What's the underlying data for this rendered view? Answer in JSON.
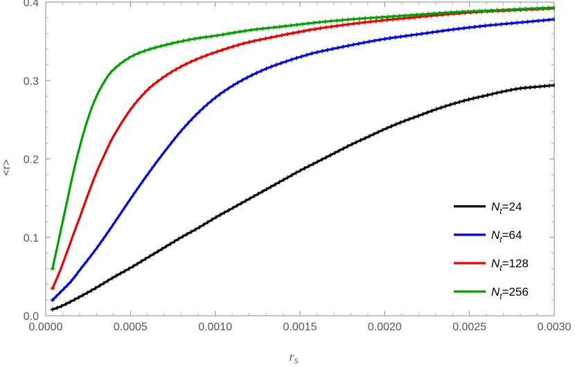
{
  "chart_data": {
    "type": "line",
    "title": "",
    "xlabel": "r_S",
    "xlabel_main": "r",
    "xlabel_sub": "S",
    "ylabel": "<r>",
    "xlim": [
      0.0,
      0.003
    ],
    "ylim": [
      0.0,
      0.4
    ],
    "x_ticks": [
      0.0,
      0.0005,
      0.001,
      0.0015,
      0.002,
      0.0025,
      0.003
    ],
    "x_tick_labels": [
      "0.0000",
      "0.0005",
      "0.0010",
      "0.0015",
      "0.0020",
      "0.0025",
      "0.0030"
    ],
    "y_ticks": [
      0.0,
      0.1,
      0.2,
      0.3,
      0.4
    ],
    "y_tick_labels": [
      "0.0",
      "0.1",
      "0.2",
      "0.3",
      "0.4"
    ],
    "grid": false,
    "legend_position": "bottom-right",
    "series": [
      {
        "name": "N_t=24",
        "legend_symbol": "N",
        "legend_sub": "t",
        "legend_value": "=24",
        "color": "#000000",
        "x": [
          4e-05,
          0.0001,
          0.0002,
          0.0003,
          0.0004,
          0.0005,
          0.0006,
          0.0007,
          0.0008,
          0.0009,
          0.001,
          0.0011,
          0.0012,
          0.0013,
          0.0014,
          0.0015,
          0.0016,
          0.0017,
          0.0018,
          0.0019,
          0.002,
          0.0021,
          0.0022,
          0.0023,
          0.0024,
          0.0025,
          0.0026,
          0.0027,
          0.0028,
          0.0029,
          0.003
        ],
        "values": [
          0.008,
          0.013,
          0.024,
          0.036,
          0.049,
          0.061,
          0.074,
          0.087,
          0.1,
          0.112,
          0.125,
          0.137,
          0.149,
          0.161,
          0.173,
          0.185,
          0.196,
          0.207,
          0.218,
          0.228,
          0.238,
          0.247,
          0.255,
          0.263,
          0.27,
          0.276,
          0.281,
          0.286,
          0.29,
          0.292,
          0.294
        ]
      },
      {
        "name": "N_t=64",
        "legend_symbol": "N",
        "legend_sub": "t",
        "legend_value": "=64",
        "color": "#0000ee",
        "x": [
          4e-05,
          0.0001,
          0.00015,
          0.0002,
          0.0003,
          0.0004,
          0.0005,
          0.0006,
          0.0007,
          0.0008,
          0.0009,
          0.001,
          0.0011,
          0.0012,
          0.0013,
          0.0014,
          0.0015,
          0.0016,
          0.0018,
          0.002,
          0.0022,
          0.0024,
          0.0026,
          0.0028,
          0.003
        ],
        "values": [
          0.02,
          0.033,
          0.044,
          0.058,
          0.086,
          0.117,
          0.149,
          0.18,
          0.209,
          0.236,
          0.259,
          0.278,
          0.293,
          0.305,
          0.315,
          0.323,
          0.33,
          0.336,
          0.345,
          0.353,
          0.359,
          0.365,
          0.37,
          0.374,
          0.378
        ]
      },
      {
        "name": "N_t=128",
        "legend_symbol": "N",
        "legend_sub": "t",
        "legend_value": "=128",
        "color": "#ee0000",
        "x": [
          4e-05,
          8e-05,
          0.00012,
          0.00016,
          0.0002,
          0.00025,
          0.0003,
          0.00035,
          0.0004,
          0.0005,
          0.0006,
          0.0007,
          0.0008,
          0.0009,
          0.001,
          0.0011,
          0.0012,
          0.0014,
          0.0016,
          0.0018,
          0.002,
          0.0022,
          0.0024,
          0.0026,
          0.0028,
          0.003
        ],
        "values": [
          0.035,
          0.055,
          0.078,
          0.102,
          0.125,
          0.155,
          0.183,
          0.207,
          0.229,
          0.263,
          0.288,
          0.305,
          0.318,
          0.328,
          0.336,
          0.343,
          0.349,
          0.358,
          0.366,
          0.372,
          0.377,
          0.381,
          0.385,
          0.388,
          0.39,
          0.392
        ]
      },
      {
        "name": "N_t=256",
        "legend_symbol": "N",
        "legend_sub": "t",
        "legend_value": "=256",
        "color": "#00a000",
        "x": [
          4e-05,
          8e-05,
          0.00012,
          0.00016,
          0.0002,
          0.00025,
          0.0003,
          0.00035,
          0.0004,
          0.0005,
          0.0006,
          0.0007,
          0.0008,
          0.0009,
          0.001,
          0.0012,
          0.0014,
          0.0016,
          0.0018,
          0.002,
          0.0022,
          0.0024,
          0.0026,
          0.0028,
          0.003
        ],
        "values": [
          0.06,
          0.1,
          0.14,
          0.18,
          0.215,
          0.252,
          0.28,
          0.3,
          0.314,
          0.33,
          0.339,
          0.345,
          0.35,
          0.354,
          0.357,
          0.364,
          0.369,
          0.374,
          0.378,
          0.381,
          0.384,
          0.387,
          0.389,
          0.391,
          0.393
        ]
      }
    ]
  }
}
